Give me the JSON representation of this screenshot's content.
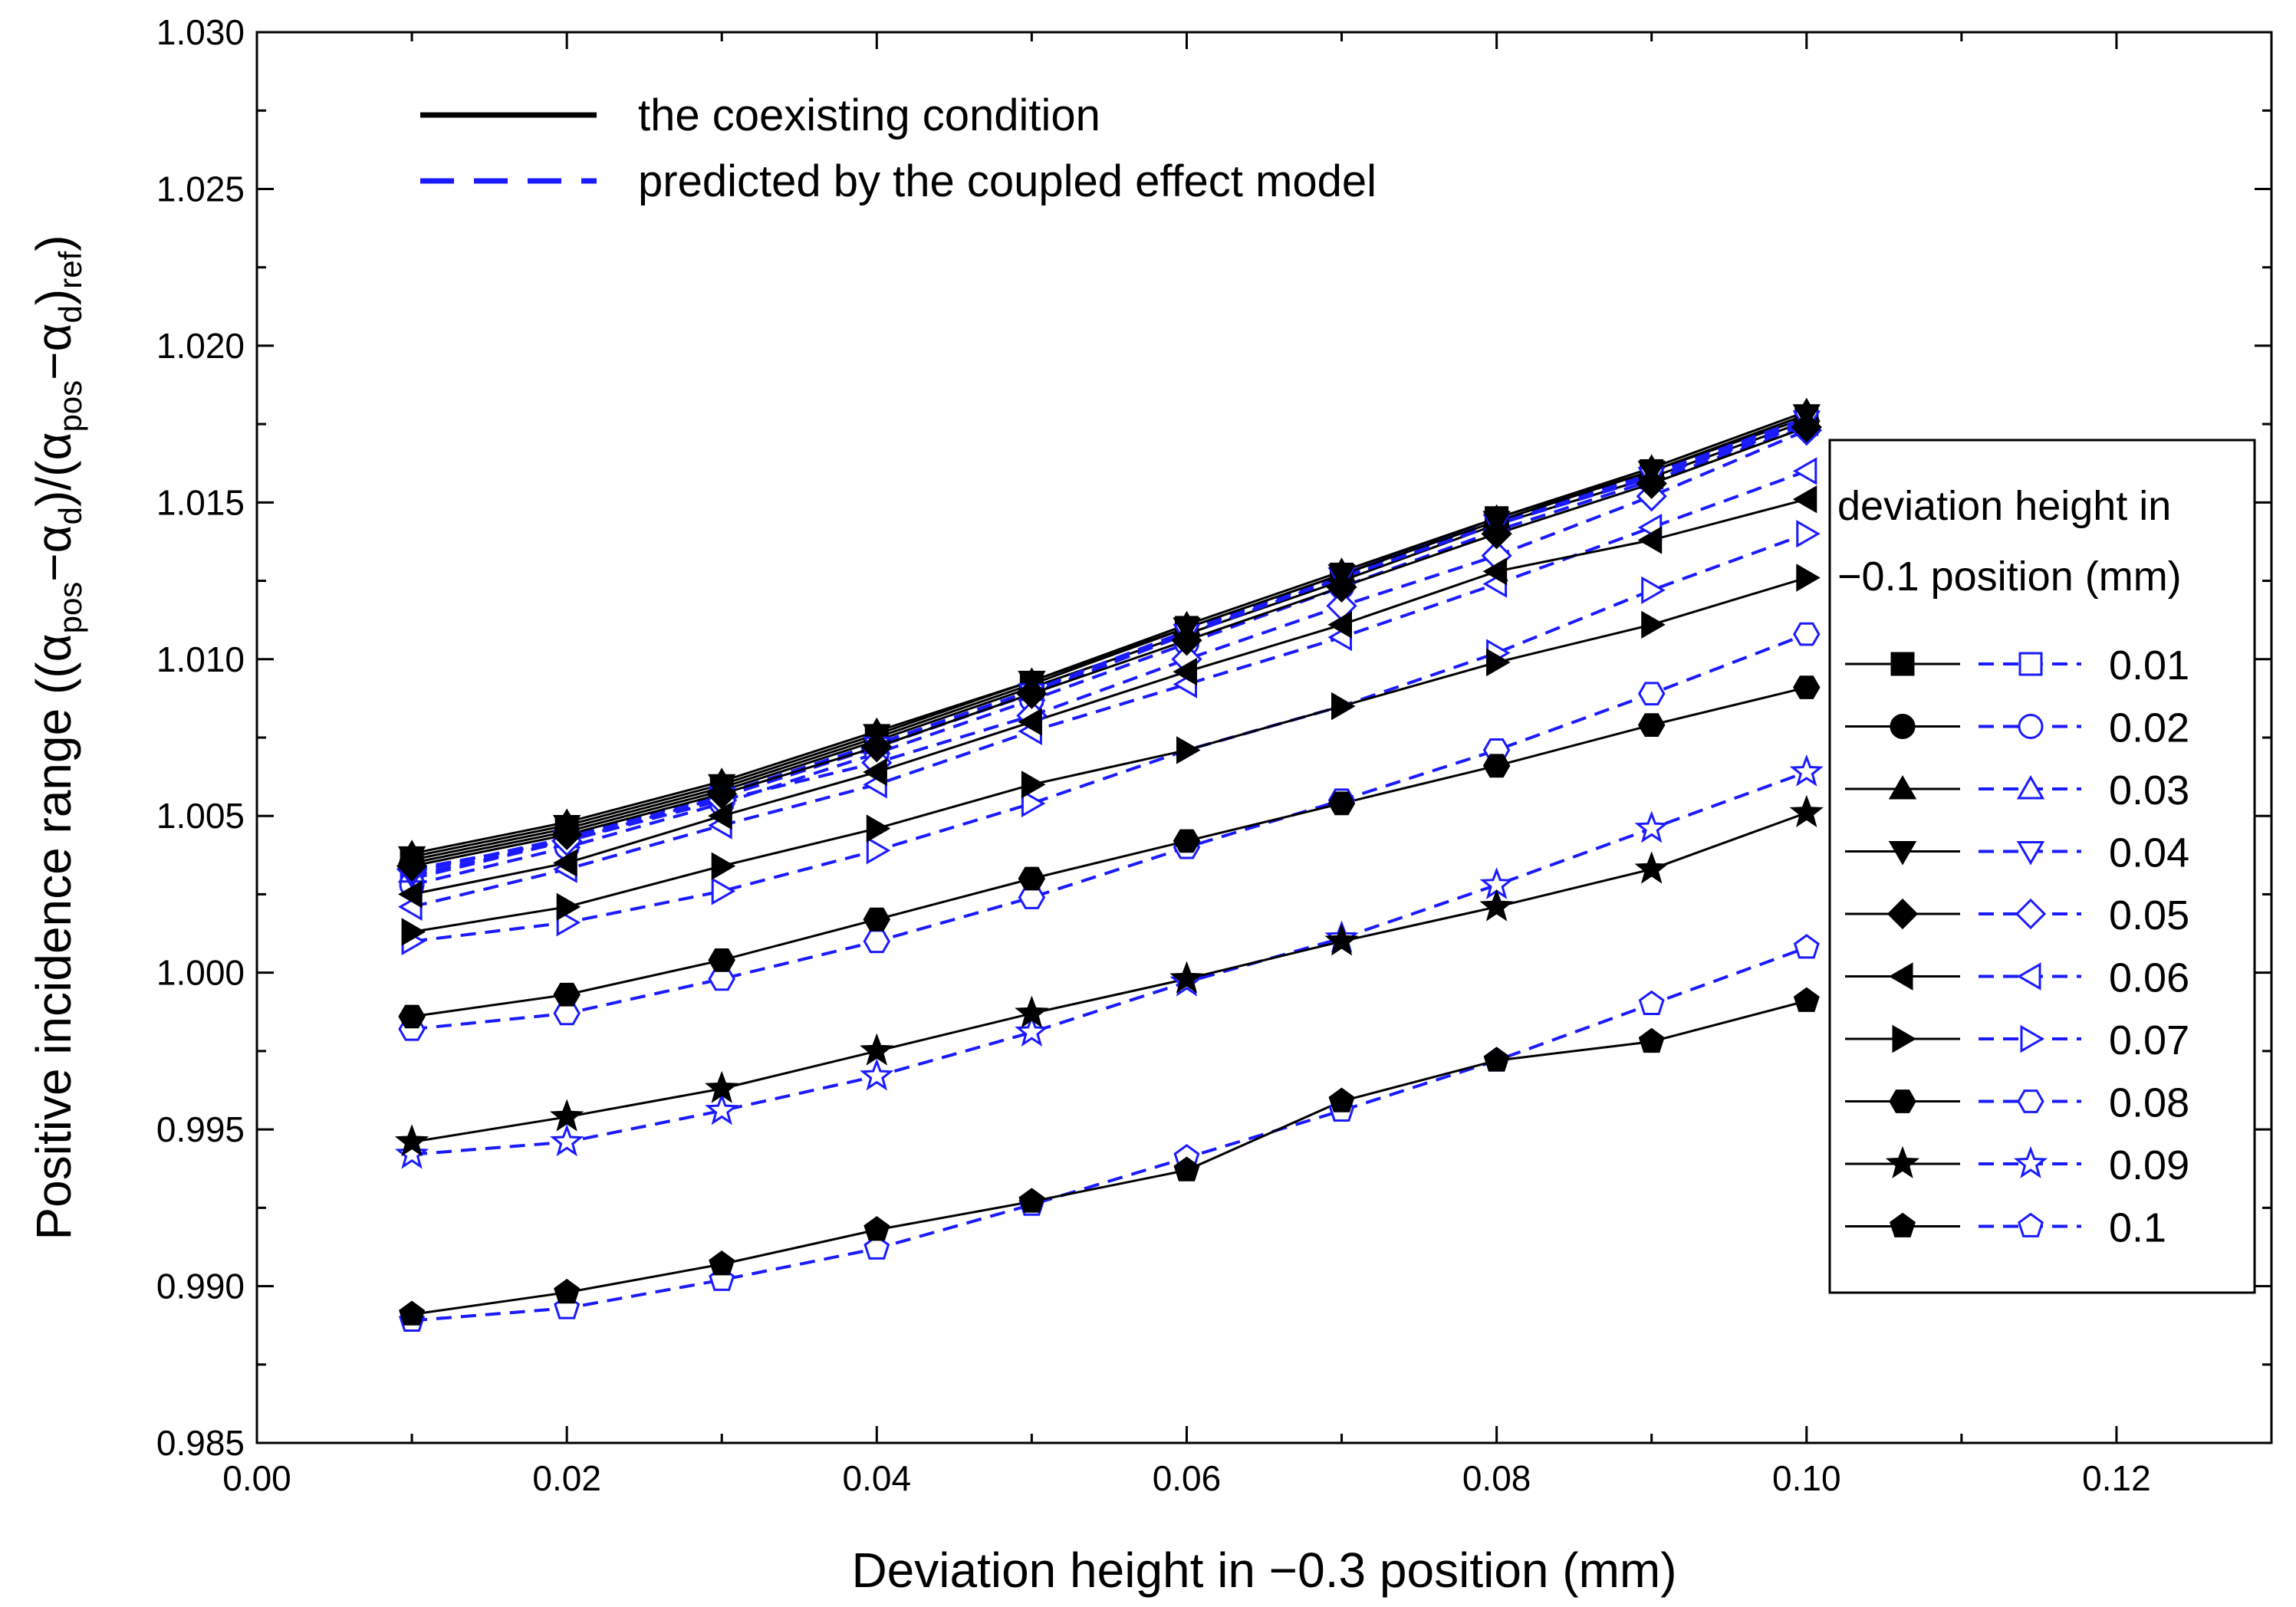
{
  "chart_data": {
    "type": "line",
    "xlabel": "Deviation height in −0.3 position (mm)",
    "ylabel_parts": [
      "Positive incidence range ((α",
      "pos",
      "−α",
      "d",
      ")/(α",
      "pos",
      "−α",
      "d",
      ")",
      "ref",
      ")"
    ],
    "xlim": [
      0.0,
      0.13
    ],
    "ylim": [
      0.985,
      1.03
    ],
    "x_ticks": [
      "0.00",
      "0.02",
      "0.04",
      "0.06",
      "0.08",
      "0.10",
      "0.12"
    ],
    "y_ticks": [
      "0.985",
      "0.990",
      "0.995",
      "1.000",
      "1.005",
      "1.010",
      "1.015",
      "1.020",
      "1.025",
      "1.030"
    ],
    "x_tick_values": [
      0.0,
      0.02,
      0.04,
      0.06,
      0.08,
      0.1,
      0.12
    ],
    "y_tick_values": [
      0.985,
      0.99,
      0.995,
      1.0,
      1.005,
      1.01,
      1.015,
      1.02,
      1.025,
      1.03
    ],
    "x": [
      0.01,
      0.02,
      0.03,
      0.04,
      0.05,
      0.06,
      0.07,
      0.08,
      0.09,
      0.1
    ],
    "line_styles": [
      {
        "label": "the coexisting condition",
        "color": "#000000",
        "dash": "solid"
      },
      {
        "label": "predicted by the coupled effect model",
        "color": "#1a1aff",
        "dash": "dashed"
      }
    ],
    "legend_title_lines": [
      "deviation height in",
      "−0.1 position (mm)"
    ],
    "solid_color": "#000000",
    "dashed_color": "#1a1aff",
    "series": [
      {
        "name": "0.01",
        "marker": "square",
        "coexisting": [
          1.0036,
          1.0046,
          1.0059,
          1.0075,
          1.0092,
          1.011,
          1.0127,
          1.0145,
          1.016,
          1.0177
        ],
        "predicted": [
          1.003,
          1.0042,
          1.0056,
          1.0072,
          1.0089,
          1.0108,
          1.0126,
          1.0143,
          1.0158,
          1.0175
        ]
      },
      {
        "name": "0.02",
        "marker": "circle",
        "coexisting": [
          1.0035,
          1.0045,
          1.0058,
          1.0074,
          1.0091,
          1.0108,
          1.0125,
          1.0143,
          1.0158,
          1.0176
        ],
        "predicted": [
          1.0028,
          1.004,
          1.0054,
          1.007,
          1.0087,
          1.0105,
          1.0123,
          1.0141,
          1.0157,
          1.0174
        ]
      },
      {
        "name": "0.03",
        "marker": "triangle-up",
        "coexisting": [
          1.0038,
          1.0048,
          1.0061,
          1.0077,
          1.0093,
          1.0111,
          1.0128,
          1.0145,
          1.0161,
          1.0179
        ],
        "predicted": [
          1.0032,
          1.0043,
          1.0057,
          1.0073,
          1.009,
          1.0109,
          1.0127,
          1.0144,
          1.0159,
          1.0177
        ]
      },
      {
        "name": "0.04",
        "marker": "triangle-down",
        "coexisting": [
          1.0037,
          1.0047,
          1.006,
          1.0076,
          1.0093,
          1.011,
          1.0127,
          1.0144,
          1.016,
          1.0178
        ],
        "predicted": [
          1.0031,
          1.0042,
          1.0056,
          1.0072,
          1.0089,
          1.0108,
          1.0126,
          1.0143,
          1.0158,
          1.0176
        ]
      },
      {
        "name": "0.05",
        "marker": "diamond",
        "coexisting": [
          1.0034,
          1.0044,
          1.0057,
          1.0072,
          1.0089,
          1.0106,
          1.0123,
          1.014,
          1.0156,
          1.0174
        ],
        "predicted": [
          1.0033,
          1.0042,
          1.0055,
          1.0067,
          1.0082,
          1.01,
          1.0117,
          1.0133,
          1.0152,
          1.0173
        ]
      },
      {
        "name": "0.06",
        "marker": "triangle-left",
        "coexisting": [
          1.0025,
          1.0035,
          1.005,
          1.0064,
          1.008,
          1.0096,
          1.0111,
          1.0128,
          1.0138,
          1.0151
        ],
        "predicted": [
          1.0021,
          1.0033,
          1.0047,
          1.006,
          1.0077,
          1.0092,
          1.0107,
          1.0124,
          1.0142,
          1.016
        ]
      },
      {
        "name": "0.07",
        "marker": "triangle-right",
        "coexisting": [
          1.0013,
          1.0021,
          1.0034,
          1.0046,
          1.006,
          1.0071,
          1.0085,
          1.0099,
          1.0111,
          1.0126
        ],
        "predicted": [
          1.001,
          1.0016,
          1.0026,
          1.0039,
          1.0054,
          1.0071,
          1.0085,
          1.0102,
          1.0122,
          1.014
        ]
      },
      {
        "name": "0.08",
        "marker": "hexagon",
        "coexisting": [
          0.9986,
          0.9993,
          1.0004,
          1.0017,
          1.003,
          1.0042,
          1.0054,
          1.0066,
          1.0079,
          1.0091
        ],
        "predicted": [
          0.9982,
          0.9987,
          0.9998,
          1.001,
          1.0024,
          1.004,
          1.0055,
          1.0071,
          1.0089,
          1.0108
        ]
      },
      {
        "name": "0.09",
        "marker": "star",
        "coexisting": [
          0.9946,
          0.9954,
          0.9963,
          0.9975,
          0.9987,
          0.9998,
          1.001,
          1.0021,
          1.0033,
          1.0051
        ],
        "predicted": [
          0.9942,
          0.9946,
          0.9956,
          0.9967,
          0.9981,
          0.9997,
          1.0011,
          1.0028,
          1.0046,
          1.0064
        ]
      },
      {
        "name": "0.1",
        "marker": "pentagon",
        "coexisting": [
          0.9891,
          0.9898,
          0.9907,
          0.9918,
          0.9927,
          0.9937,
          0.9959,
          0.9972,
          0.9978,
          0.9991
        ],
        "predicted": [
          0.9889,
          0.9893,
          0.9902,
          0.9912,
          0.9926,
          0.9941,
          0.9956,
          0.9972,
          0.999,
          1.0008
        ]
      }
    ]
  }
}
